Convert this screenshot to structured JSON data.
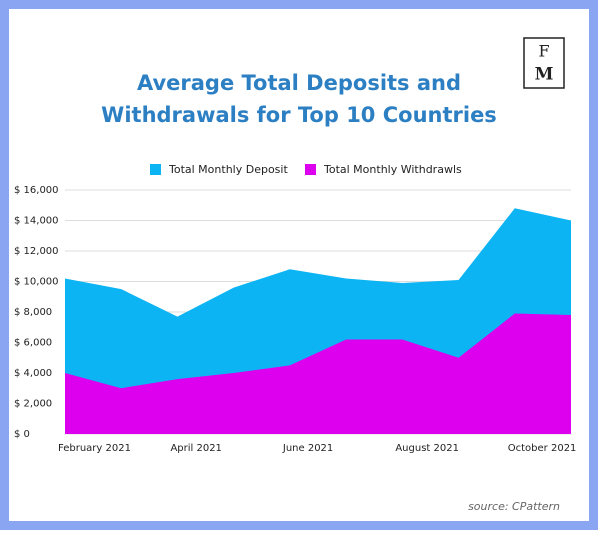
{
  "chart_data": {
    "type": "area",
    "title": [
      "Average Total Deposits and",
      "Withdrawals for Top 10 Countries"
    ],
    "categories": [
      "February 2021",
      null,
      "April 2021",
      null,
      "June 2021",
      null,
      "August 2021",
      null,
      "October 2021",
      null
    ],
    "series": [
      {
        "name": "Total Monthly Deposit",
        "color": "#0db4f3",
        "values": [
          10200,
          9500,
          7700,
          9600,
          10800,
          10200,
          9900,
          10100,
          14800,
          14000
        ]
      },
      {
        "name": "Total Monthly Withdrawls",
        "color": "#dc00ee",
        "values": [
          4000,
          3000,
          3600,
          4000,
          4500,
          6200,
          6200,
          5000,
          7900,
          7800
        ]
      }
    ],
    "ylim": [
      0,
      16000
    ],
    "yticks": [
      {
        "value": 0,
        "label": "$ 0"
      },
      {
        "value": 2000,
        "label": "$ 2,000"
      },
      {
        "value": 4000,
        "label": "$ 4,000"
      },
      {
        "value": 6000,
        "label": "$ 6,000"
      },
      {
        "value": 8000,
        "label": "$ 8,000"
      },
      {
        "value": 10000,
        "label": "$ 10,000"
      },
      {
        "value": 12000,
        "label": "$ 12,000"
      },
      {
        "value": 14000,
        "label": "$ 14,000"
      },
      {
        "value": 16000,
        "label": "$ 16,000"
      }
    ],
    "grid": true,
    "legend": "top",
    "source": "source: CPattern"
  },
  "logo": {
    "top": "F",
    "bottom": "M"
  }
}
